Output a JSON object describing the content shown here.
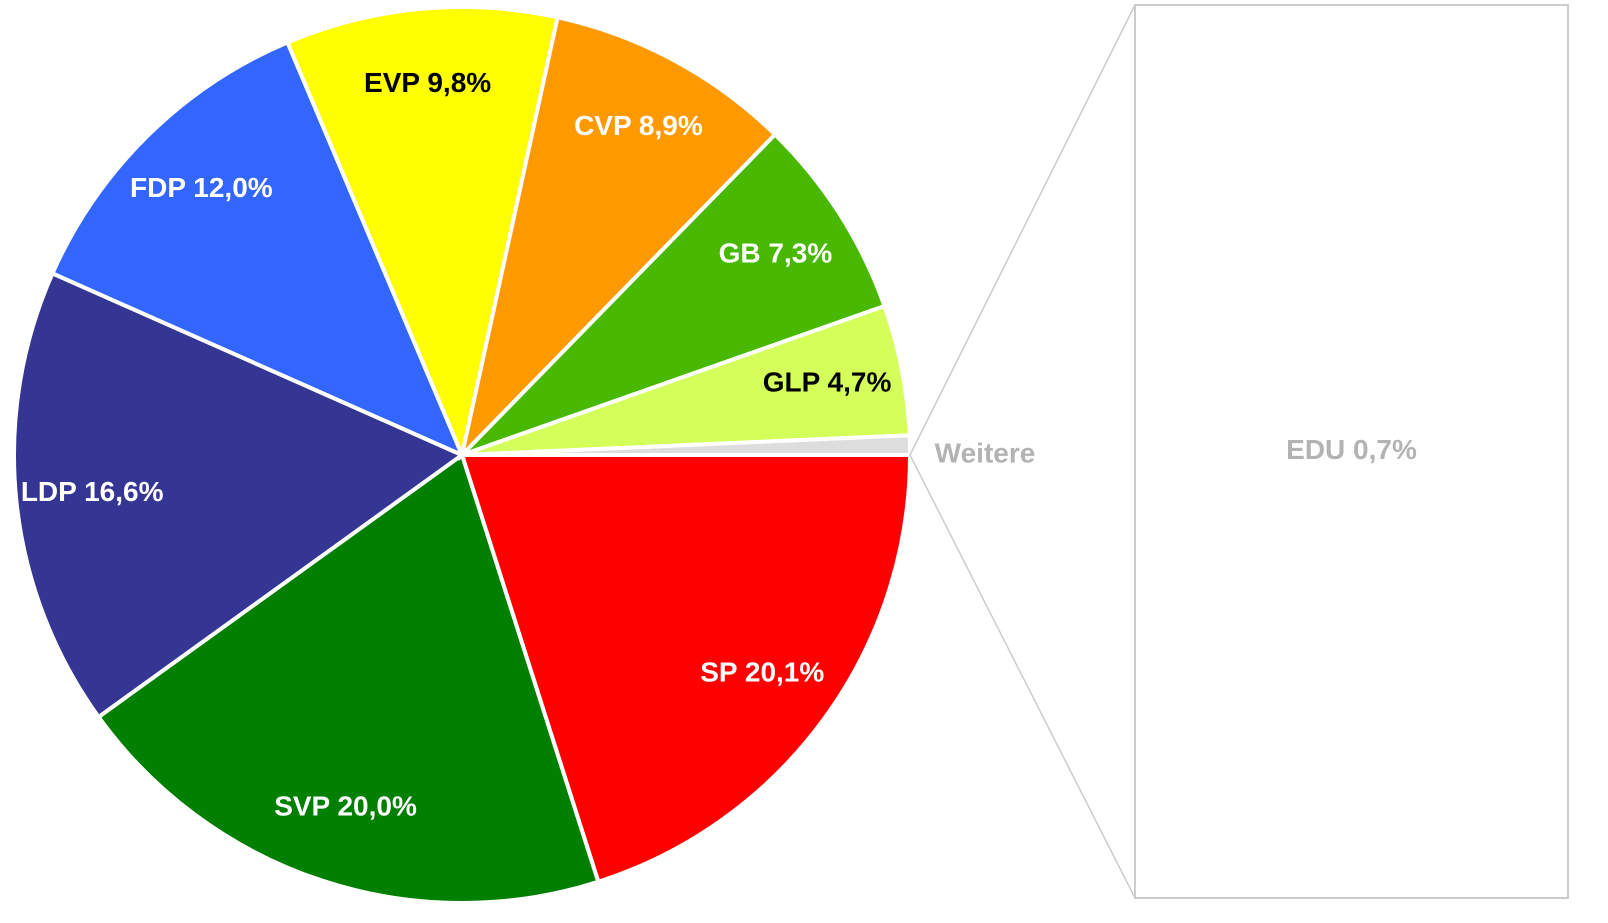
{
  "chart_data": {
    "type": "pie-of-bar",
    "categories": [
      "SP",
      "SVP",
      "LDP",
      "FDP",
      "EVP",
      "CVP",
      "GB",
      "GLP",
      "Weitere"
    ],
    "values": [
      20.1,
      20.0,
      16.6,
      12.0,
      9.8,
      8.9,
      7.3,
      4.7,
      0.7
    ],
    "value_labels": [
      "SP 20,1%",
      "SVP 20,0%",
      "LDP 16,6%",
      "FDP 12,0%",
      "EVP 9,8%",
      "CVP 8,9%",
      "GB 7,3%",
      "GLP 4,7%",
      "Weitere"
    ],
    "colors": [
      "#ff0000",
      "#007f00",
      "#353594",
      "#3366ff",
      "#ffff00",
      "#ff9900",
      "#48b800",
      "#d4ff5a",
      "#dddddd"
    ],
    "label_colors": [
      "#ffffff",
      "#ffffff",
      "#ffffff",
      "#ffffff",
      "#000000",
      "#ffffff",
      "#ffffff",
      "#000000",
      "#b3b3b3"
    ],
    "bar": {
      "categories": [
        "EDU"
      ],
      "values": [
        0.7
      ],
      "value_labels": [
        "EDU 0,7%"
      ],
      "color": "#ffffff",
      "label_color": "#b3b3b3"
    }
  }
}
